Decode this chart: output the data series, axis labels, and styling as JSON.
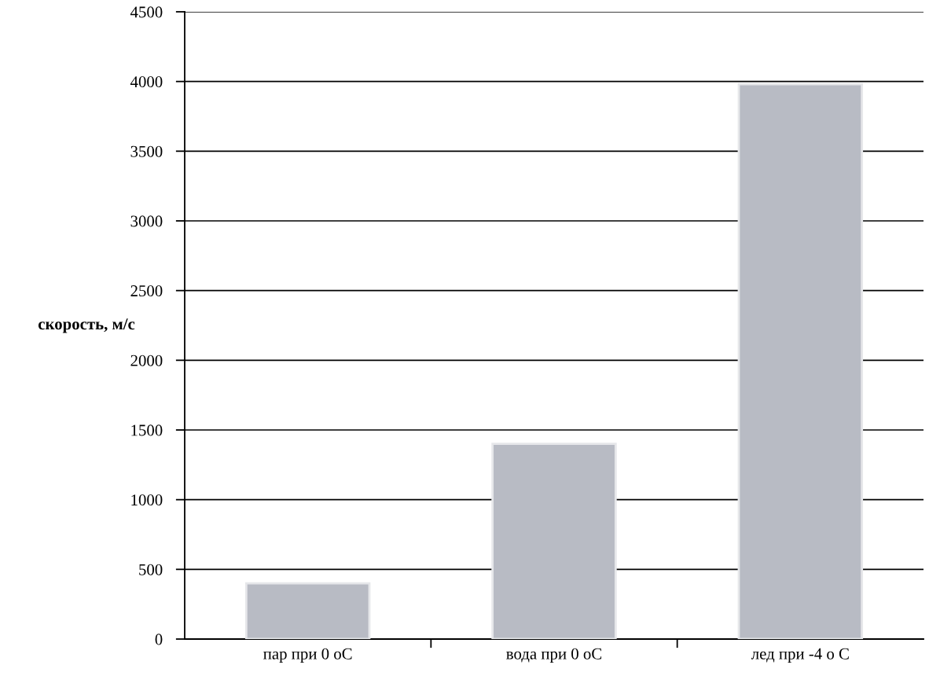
{
  "chart_data": {
    "type": "bar",
    "ylabel": "скорость, м/с",
    "categories": [
      "пар при 0 оС",
      "вода при 0 оС",
      "лед при -4 о С"
    ],
    "values": [
      400,
      1400,
      3980
    ],
    "color": "#b8bbc4",
    "ylim": [
      0,
      4500
    ],
    "yticks": [
      0,
      500,
      1000,
      1500,
      2000,
      2500,
      3000,
      3500,
      4000,
      4500
    ],
    "grid": "y",
    "legend": false
  }
}
